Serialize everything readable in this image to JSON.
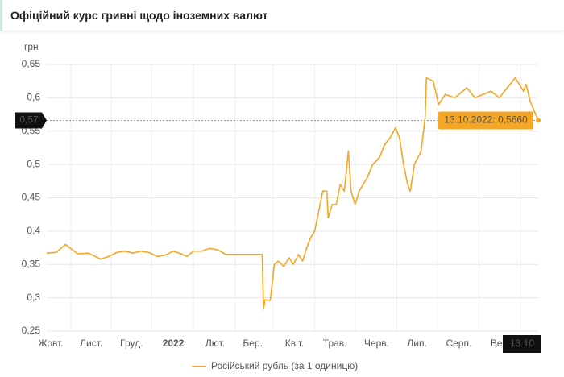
{
  "chart_data": {
    "type": "line",
    "title": "Офіційний курс гривні щодо іноземних валют",
    "y_label": "грн",
    "x": [
      0,
      7,
      14,
      19,
      23,
      31,
      36,
      40,
      46,
      52,
      58,
      64,
      70,
      76,
      82,
      88,
      94,
      100,
      104,
      109,
      115,
      121,
      127,
      133,
      160,
      161,
      162,
      166,
      169,
      172,
      176,
      180,
      183,
      187,
      190,
      193,
      196,
      199,
      202,
      205,
      208,
      209,
      212,
      215,
      218,
      221,
      224,
      226,
      229,
      232,
      238,
      242,
      247,
      251,
      255,
      259,
      262,
      265,
      268,
      270,
      273,
      278,
      281,
      282,
      287,
      291,
      296,
      303,
      309,
      312,
      318,
      324,
      330,
      336,
      344,
      348,
      354,
      356,
      359,
      365
    ],
    "series": [
      {
        "name": "Російський рубль (за 1 одиницю)",
        "color": "#f5a623",
        "values": [
          0.367,
          0.368,
          0.38,
          0.372,
          0.366,
          0.367,
          0.362,
          0.358,
          0.362,
          0.368,
          0.37,
          0.367,
          0.37,
          0.368,
          0.362,
          0.364,
          0.37,
          0.366,
          0.362,
          0.37,
          0.37,
          0.374,
          0.372,
          0.365,
          0.365,
          0.283,
          0.297,
          0.296,
          0.35,
          0.355,
          0.347,
          0.36,
          0.35,
          0.365,
          0.355,
          0.375,
          0.39,
          0.4,
          0.43,
          0.46,
          0.46,
          0.42,
          0.44,
          0.44,
          0.47,
          0.46,
          0.52,
          0.46,
          0.44,
          0.46,
          0.48,
          0.5,
          0.51,
          0.53,
          0.54,
          0.555,
          0.54,
          0.5,
          0.47,
          0.46,
          0.5,
          0.52,
          0.57,
          0.63,
          0.625,
          0.59,
          0.605,
          0.6,
          0.61,
          0.615,
          0.6,
          0.605,
          0.61,
          0.6,
          0.62,
          0.63,
          0.61,
          0.62,
          0.595,
          0.566
        ]
      }
    ],
    "xlim": [
      0,
      365
    ],
    "xticks": [
      {
        "value": 3,
        "label": "Жовт."
      },
      {
        "value": 33,
        "label": "Лист."
      },
      {
        "value": 63,
        "label": "Груд."
      },
      {
        "value": 94,
        "label": "2022"
      },
      {
        "value": 125,
        "label": "Лют."
      },
      {
        "value": 153,
        "label": "Бер."
      },
      {
        "value": 184,
        "label": "Квіт."
      },
      {
        "value": 214,
        "label": "Трав."
      },
      {
        "value": 245,
        "label": "Черв."
      },
      {
        "value": 275,
        "label": "Лип."
      },
      {
        "value": 306,
        "label": "Серп."
      },
      {
        "value": 337,
        "label": "Вер."
      }
    ],
    "ylim": [
      0.25,
      0.65
    ],
    "yticks": [
      {
        "value": 0.25,
        "label": "0,25"
      },
      {
        "value": 0.3,
        "label": "0,3"
      },
      {
        "value": 0.35,
        "label": "0,35"
      },
      {
        "value": 0.4,
        "label": "0,4"
      },
      {
        "value": 0.45,
        "label": "0,45"
      },
      {
        "value": 0.5,
        "label": "0,5"
      },
      {
        "value": 0.55,
        "label": "0,55"
      },
      {
        "value": 0.6,
        "label": "0,6"
      },
      {
        "value": 0.65,
        "label": "0,65"
      }
    ],
    "grid": true,
    "annotations": {
      "crosshair_y_label": "0,57",
      "tooltip": "13.10.2022: 0,5660",
      "crosshair_x_label": "13.10"
    }
  }
}
